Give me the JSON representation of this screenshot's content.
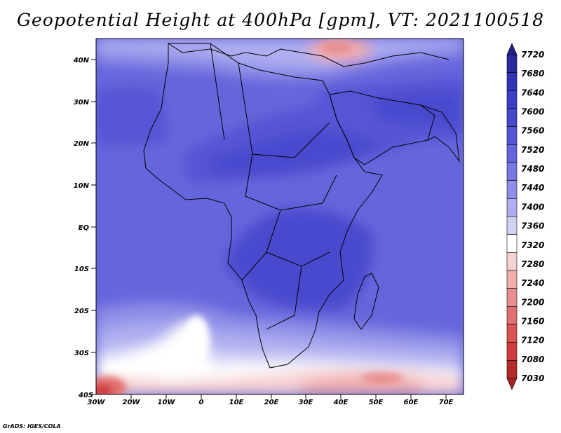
{
  "title": "Geopotential Height at 400hPa [gpm], VT: 2021100518",
  "credit": "GrADS: IGES/COLA",
  "map": {
    "lon_range": [
      -30,
      75
    ],
    "lat_range": [
      -40,
      45
    ],
    "lat_ticks": [
      "40N",
      "30N",
      "20N",
      "10N",
      "EQ",
      "10S",
      "20S",
      "30S",
      "40S"
    ],
    "lon_ticks": [
      "30W",
      "20W",
      "10W",
      "0",
      "10E",
      "20E",
      "30E",
      "40E",
      "50E",
      "60E",
      "70E"
    ]
  },
  "colorbar": {
    "levels": [
      "7720",
      "7680",
      "7640",
      "7600",
      "7560",
      "7520",
      "7480",
      "7440",
      "7400",
      "7360",
      "7320",
      "7280",
      "7240",
      "7200",
      "7160",
      "7120",
      "7080",
      "7030"
    ],
    "colors": [
      "#29299e",
      "#3333b8",
      "#3d3dc6",
      "#4848cd",
      "#5555d5",
      "#6666dc",
      "#7878e2",
      "#8f8fe8",
      "#aeaef0",
      "#d2d2f7",
      "#ffffff",
      "#f7d2d2",
      "#f0aeae",
      "#e88f8f",
      "#e27070",
      "#dc5555",
      "#d03b3b",
      "#b52a2a"
    ]
  }
}
